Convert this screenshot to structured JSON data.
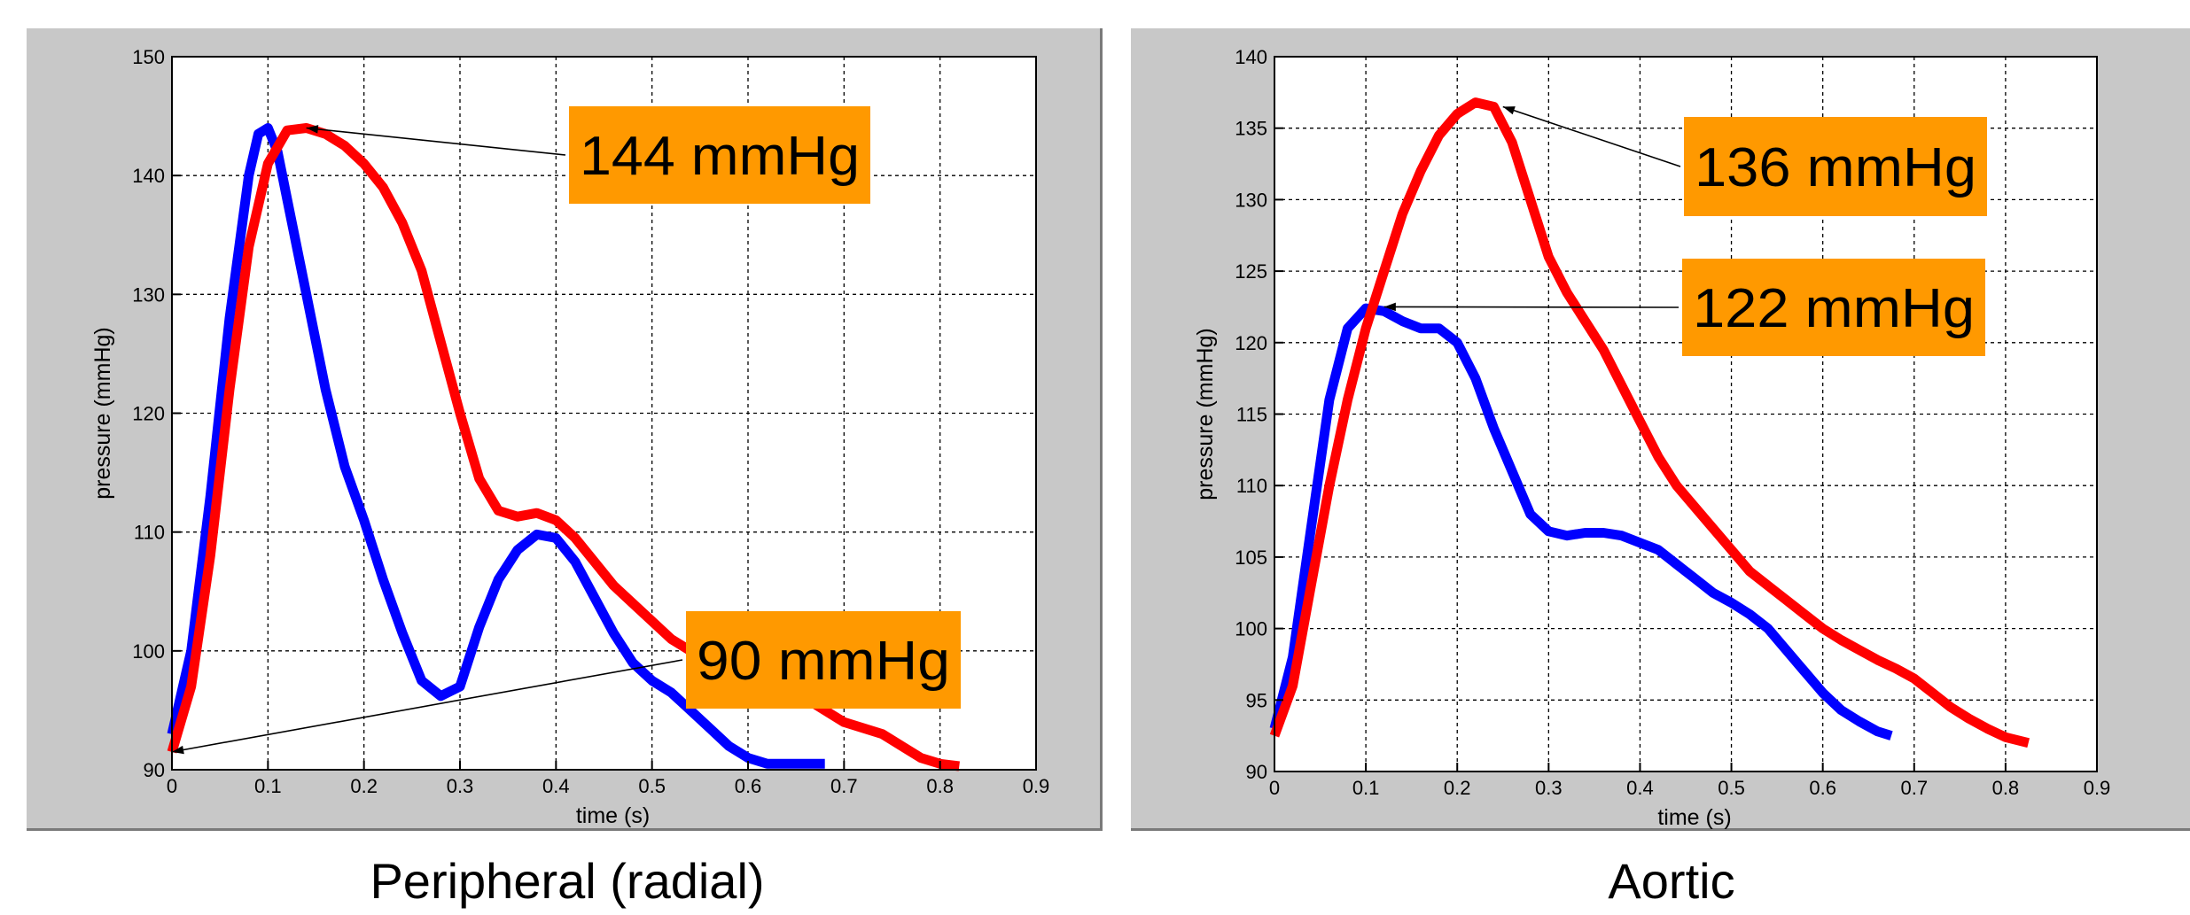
{
  "chart_data": [
    {
      "type": "line",
      "caption": "Peripheral (radial)",
      "xlabel": "time (s)",
      "ylabel": "pressure (mmHg)",
      "xlim": [
        0,
        0.9
      ],
      "ylim": [
        90,
        150
      ],
      "xticks": [
        0,
        0.1,
        0.2,
        0.3,
        0.4,
        0.5,
        0.6,
        0.7,
        0.8,
        0.9
      ],
      "xtick_labels": [
        "0",
        "0.1",
        "0.2",
        "0.3",
        "0.4",
        "0.5",
        "0.6",
        "0.7",
        "0.8",
        "0.9"
      ],
      "yticks": [
        90,
        100,
        110,
        120,
        130,
        140,
        150
      ],
      "ytick_labels": [
        "90",
        "100",
        "110",
        "120",
        "130",
        "140",
        "150"
      ],
      "grid": true,
      "series": [
        {
          "color": "#0000ff",
          "x": [
            0,
            0.02,
            0.04,
            0.06,
            0.08,
            0.09,
            0.1,
            0.11,
            0.12,
            0.14,
            0.16,
            0.18,
            0.2,
            0.22,
            0.24,
            0.26,
            0.28,
            0.3,
            0.32,
            0.34,
            0.36,
            0.38,
            0.4,
            0.42,
            0.44,
            0.46,
            0.48,
            0.5,
            0.52,
            0.54,
            0.56,
            0.58,
            0.6,
            0.62,
            0.64,
            0.66,
            0.68
          ],
          "y": [
            93,
            100,
            113,
            128,
            140,
            143.5,
            144,
            142,
            138,
            130,
            122,
            115.5,
            111,
            106,
            101.5,
            97.5,
            96.2,
            97,
            102,
            106,
            108.5,
            109.8,
            109.5,
            107.5,
            104.5,
            101.5,
            99,
            97.5,
            96.5,
            95,
            93.5,
            92,
            91,
            90.5,
            90.5,
            90.5,
            90.5
          ]
        },
        {
          "color": "#ff0000",
          "x": [
            0,
            0.02,
            0.04,
            0.06,
            0.08,
            0.1,
            0.12,
            0.14,
            0.16,
            0.18,
            0.2,
            0.22,
            0.24,
            0.26,
            0.28,
            0.3,
            0.32,
            0.34,
            0.36,
            0.38,
            0.4,
            0.42,
            0.44,
            0.46,
            0.48,
            0.5,
            0.52,
            0.54,
            0.56,
            0.58,
            0.6,
            0.62,
            0.64,
            0.66,
            0.68,
            0.7,
            0.72,
            0.74,
            0.76,
            0.78,
            0.8,
            0.82
          ],
          "y": [
            91.5,
            97,
            108,
            122,
            134,
            141,
            143.8,
            144,
            143.5,
            142.5,
            141,
            139,
            136,
            132,
            126,
            120,
            114.5,
            111.8,
            111.3,
            111.6,
            111,
            109.5,
            107.5,
            105.5,
            104,
            102.5,
            101,
            100,
            99,
            98.5,
            98,
            97.5,
            97,
            96,
            95,
            94,
            93.5,
            93,
            92,
            91,
            90.5,
            90.3
          ]
        }
      ],
      "annotations": [
        {
          "text": "144 mmHg",
          "point": [
            0.14,
            144
          ]
        },
        {
          "text": "90 mmHg",
          "point": [
            0.0,
            91.5
          ]
        }
      ]
    },
    {
      "type": "line",
      "caption": "Aortic",
      "xlabel": "time (s)",
      "ylabel": "pressure (mmHg)",
      "xlim": [
        0,
        0.9
      ],
      "ylim": [
        90,
        140
      ],
      "xticks": [
        0,
        0.1,
        0.2,
        0.3,
        0.4,
        0.5,
        0.6,
        0.7,
        0.8,
        0.9
      ],
      "xtick_labels": [
        "0",
        "0.1",
        "0.2",
        "0.3",
        "0.4",
        "0.5",
        "0.6",
        "0.7",
        "0.8",
        "0.9"
      ],
      "yticks": [
        90,
        95,
        100,
        105,
        110,
        115,
        120,
        125,
        130,
        135,
        140
      ],
      "ytick_labels": [
        "90",
        "95",
        "100",
        "105",
        "110",
        "115",
        "120",
        "125",
        "130",
        "135",
        "140"
      ],
      "grid": true,
      "series": [
        {
          "color": "#0000ff",
          "x": [
            0,
            0.02,
            0.04,
            0.06,
            0.08,
            0.1,
            0.12,
            0.14,
            0.16,
            0.18,
            0.2,
            0.22,
            0.24,
            0.26,
            0.28,
            0.3,
            0.32,
            0.34,
            0.36,
            0.38,
            0.4,
            0.42,
            0.44,
            0.46,
            0.48,
            0.5,
            0.52,
            0.54,
            0.56,
            0.58,
            0.6,
            0.62,
            0.64,
            0.66,
            0.675
          ],
          "y": [
            93,
            98,
            107,
            116,
            121,
            122.4,
            122.2,
            121.5,
            121,
            121,
            120,
            117.5,
            114,
            111,
            108,
            106.8,
            106.5,
            106.7,
            106.7,
            106.5,
            106,
            105.5,
            104.5,
            103.5,
            102.5,
            101.8,
            101,
            100,
            98.5,
            97,
            95.5,
            94.3,
            93.5,
            92.8,
            92.5
          ]
        },
        {
          "color": "#ff0000",
          "x": [
            0,
            0.02,
            0.04,
            0.06,
            0.08,
            0.1,
            0.12,
            0.14,
            0.16,
            0.18,
            0.2,
            0.22,
            0.24,
            0.26,
            0.28,
            0.3,
            0.32,
            0.34,
            0.36,
            0.38,
            0.4,
            0.42,
            0.44,
            0.46,
            0.48,
            0.5,
            0.52,
            0.54,
            0.56,
            0.58,
            0.6,
            0.62,
            0.64,
            0.66,
            0.68,
            0.7,
            0.72,
            0.74,
            0.76,
            0.78,
            0.8,
            0.825
          ],
          "y": [
            92.5,
            96,
            103,
            110,
            116,
            121,
            125,
            129,
            132,
            134.5,
            136,
            136.8,
            136.5,
            134,
            130,
            126,
            123.5,
            121.5,
            119.5,
            117,
            114.5,
            112,
            110,
            108.5,
            107,
            105.5,
            104,
            103,
            102,
            101,
            100,
            99.2,
            98.5,
            97.8,
            97.2,
            96.5,
            95.5,
            94.5,
            93.7,
            93,
            92.4,
            92
          ]
        }
      ],
      "annotations": [
        {
          "text": "136 mmHg",
          "point": [
            0.25,
            136.5
          ]
        },
        {
          "text": "122 mmHg",
          "point": [
            0.12,
            122.5
          ]
        }
      ]
    }
  ]
}
